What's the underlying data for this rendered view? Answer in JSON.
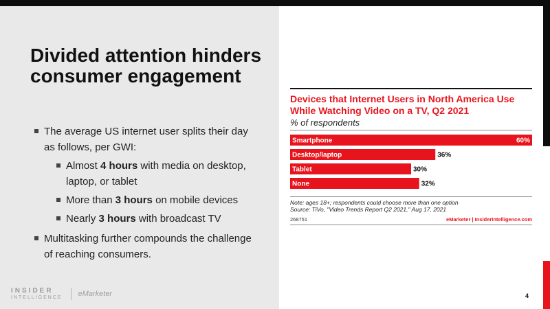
{
  "slide": {
    "title": "Divided attention hinders consumer engagement",
    "bullets": [
      {
        "text": "The average US internet user splits their day as follows, per GWI:",
        "subs": [
          {
            "pre": "Almost ",
            "bold": "4 hours",
            "post": " with media on desktop, laptop, or tablet"
          },
          {
            "pre": "More than ",
            "bold": "3 hours",
            "post": " on mobile devices"
          },
          {
            "pre": "Nearly ",
            "bold": "3 hours",
            "post": " with broadcast TV"
          }
        ]
      },
      {
        "text": "Multitasking further compounds the challenge of reaching consumers."
      }
    ],
    "page_number": "4"
  },
  "brand": {
    "insider": "INSIDER",
    "intelligence": "INTELLIGENCE",
    "emarketer": "eMarketer"
  },
  "chart_data": {
    "type": "bar",
    "orientation": "horizontal",
    "title": "Devices that Internet Users in North America Use While Watching Video on a TV, Q2 2021",
    "subtitle": "% of respondents",
    "categories": [
      "Smartphone",
      "Desktop/laptop",
      "Tablet",
      "None"
    ],
    "values": [
      60,
      36,
      30,
      32
    ],
    "value_labels": [
      "60%",
      "36%",
      "30%",
      "32%"
    ],
    "xlim": [
      0,
      60
    ],
    "grid": false,
    "legend": "none",
    "bar_color": "#e8141d",
    "note": "Note: ages 18+; respondents could choose more than one option",
    "source": "Source: TiVo, \"Video Trends Report Q2 2021,\" Aug 17, 2021",
    "chart_id": "268751",
    "footer_brand": "eMarketer | InsiderIntelligence.com"
  },
  "colors": {
    "accent": "#e8141d",
    "dark": "#0d0d0d",
    "panel": "#e9e9e9"
  }
}
